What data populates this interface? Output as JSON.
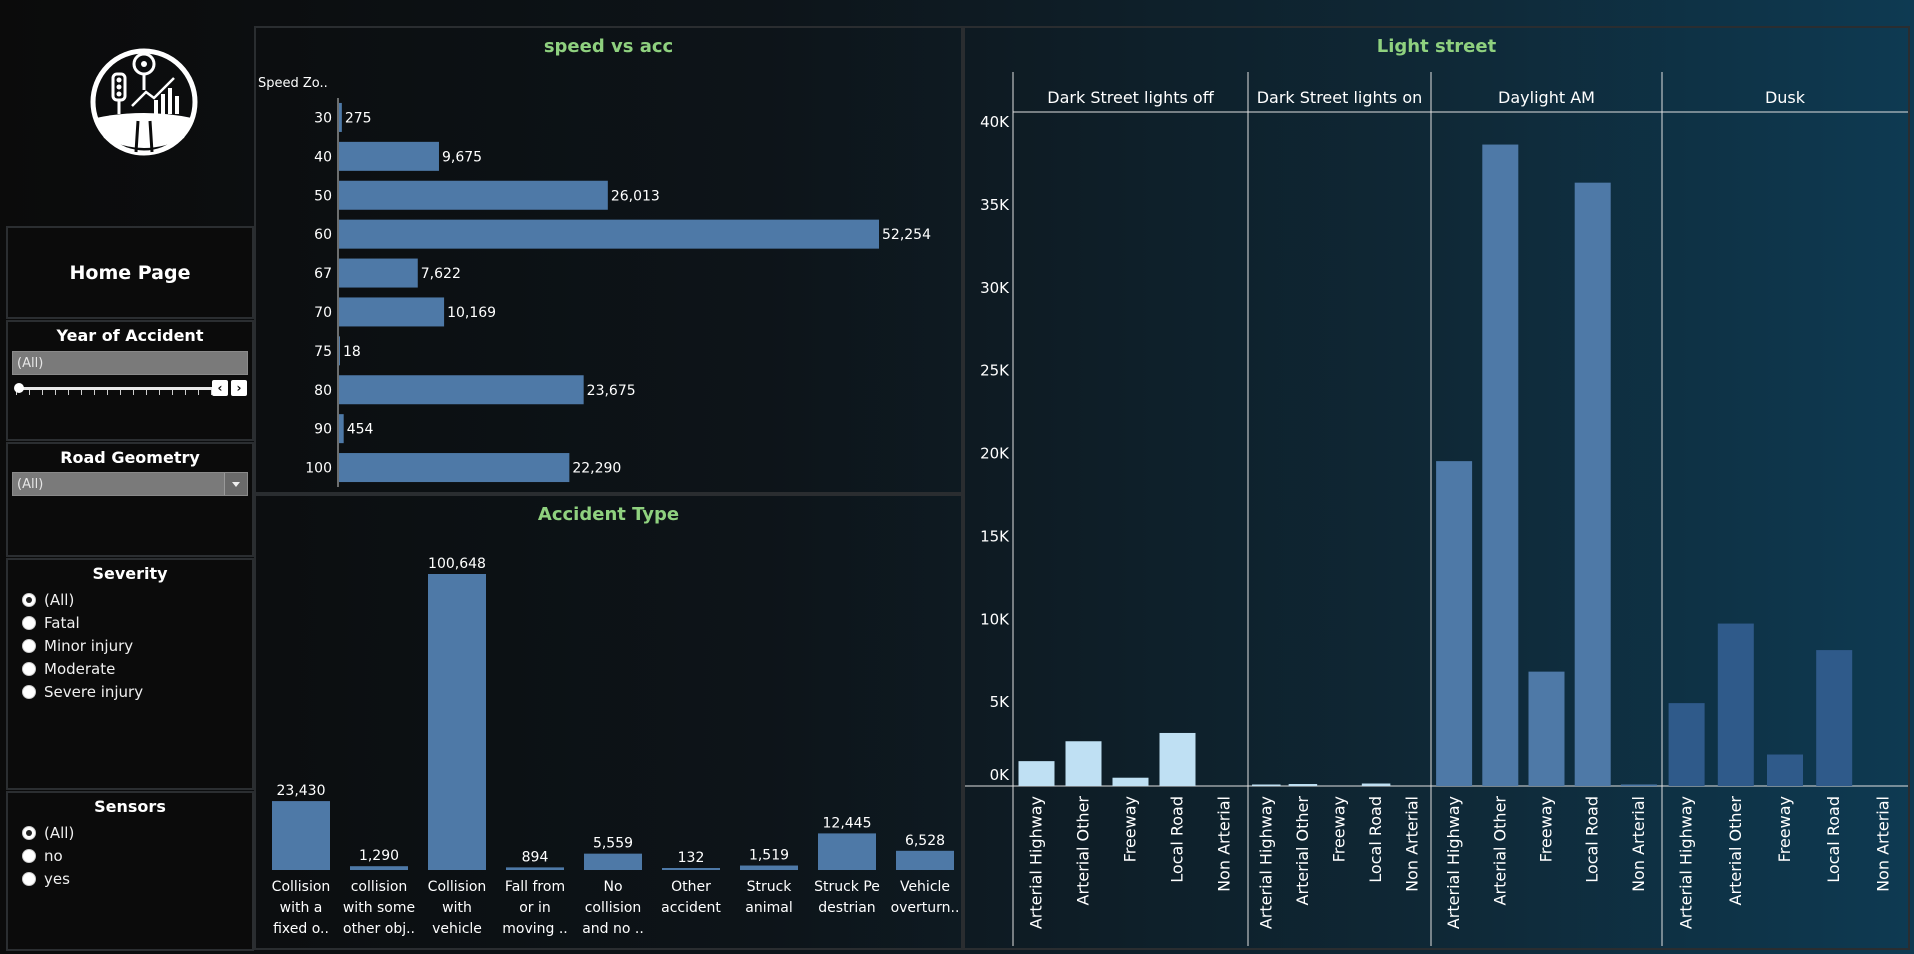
{
  "sidebar": {
    "home": "Home Page",
    "year": {
      "title": "Year of Accident",
      "value": "(All)",
      "level": 0
    },
    "road": {
      "title": "Road Geometry",
      "value": "(All)"
    },
    "severity": {
      "title": "Severity",
      "options": [
        "(All)",
        "Fatal",
        "Minor injury",
        "Moderate",
        "Severe injury"
      ],
      "selected": 0
    },
    "sensors": {
      "title": "Sensors",
      "options": [
        "(All)",
        "no",
        "yes"
      ],
      "selected": 0
    }
  },
  "colors": {
    "bar": "#4e79a7",
    "accent": "#8fd17f",
    "light_bar": "#bfe0f3",
    "dark_bar": "#2f5a8a"
  },
  "chart_data": [
    {
      "type": "bar",
      "orientation": "horizontal",
      "title": "speed vs acc",
      "ylabel": "Speed Zo..",
      "categories": [
        "30",
        "40",
        "50",
        "60",
        "67",
        "70",
        "75",
        "80",
        "90",
        "100"
      ],
      "values": [
        275,
        9675,
        26013,
        52254,
        7622,
        10169,
        18,
        23675,
        454,
        22290
      ],
      "labels": [
        "275",
        "9,675",
        "26,013",
        "52,254",
        "7,622",
        "10,169",
        "18",
        "23,675",
        "454",
        "22,290"
      ]
    },
    {
      "type": "bar",
      "title": "Accident Type",
      "categories": [
        [
          "Collision",
          "with a",
          "fixed o.."
        ],
        [
          "collision",
          "with some",
          "other obj.."
        ],
        [
          "Collision",
          "with",
          "vehicle"
        ],
        [
          "Fall from",
          "or in",
          "moving .."
        ],
        [
          "No",
          "collision",
          "and no .."
        ],
        [
          "Other",
          "accident"
        ],
        [
          "Struck",
          "animal"
        ],
        [
          "Struck Pe",
          "destrian"
        ],
        [
          "Vehicle",
          "overturn.."
        ]
      ],
      "values": [
        23430,
        1290,
        100648,
        894,
        5559,
        132,
        1519,
        12445,
        6528
      ],
      "labels": [
        "23,430",
        "1,290",
        "100,648",
        "894",
        "5,559",
        "132",
        "1,519",
        "12,445",
        "6,528"
      ]
    },
    {
      "type": "bar",
      "title": "Light street",
      "ylim": [
        0,
        40000
      ],
      "yticks": [
        "0K",
        "5K",
        "10K",
        "15K",
        "20K",
        "25K",
        "30K",
        "35K",
        "40K"
      ],
      "panels": [
        {
          "name": "Dark Street lights off",
          "values": [
            1500,
            2700,
            500,
            3200,
            0
          ],
          "color": "light_bar"
        },
        {
          "name": "Dark Street lights on",
          "values": [
            50,
            120,
            0,
            150,
            0
          ],
          "color": "light_bar"
        },
        {
          "name": "Daylight AM",
          "values": [
            19600,
            38700,
            6900,
            36400,
            80
          ],
          "color": "bar"
        },
        {
          "name": "Dusk",
          "values": [
            5000,
            9800,
            1900,
            8200,
            0
          ],
          "color": "dark_bar"
        }
      ],
      "categories": [
        "Arterial Highway",
        "Arterial Other",
        "Freeway",
        "Local Road",
        "Non Arterial"
      ]
    }
  ]
}
